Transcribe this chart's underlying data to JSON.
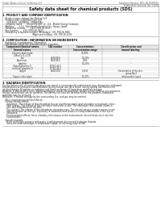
{
  "bg_color": "#ffffff",
  "header_left": "Product Name: Lithium Ion Battery Cell",
  "header_right_line1": "Substance Number: SDS-LIB-20090910",
  "header_right_line2": "Established / Revision: Dec.7,2009",
  "main_title": "Safety data sheet for chemical products (SDS)",
  "section1_title": "1. PRODUCT AND COMPANY IDENTIFICATION",
  "section1_items": [
    "  - Product name: Lithium Ion Battery Cell",
    "  - Product code: Cylindrical-type cell",
    "      (UR18650, UR18650L, UR18650A)",
    "  - Company name:      Sanyo Electric Co., Ltd., Mobile Energy Company",
    "  - Address:      2-3-1  Kannondai, Sumoto-City, Hyogo, Japan",
    "  - Telephone number:      +81-(799)-26-4111",
    "  - Fax number:      +81-(799)-26-4123",
    "  - Emergency telephone number (Weekdays) +81-799-26-3862",
    "                                          (Night and holiday) +81-799-26-4101"
  ],
  "section2_title": "2. COMPOSITION / INFORMATION ON INGREDIENTS",
  "section2_intro": "  - Substance or preparation: Preparation",
  "section2_sub": "  - Information about the chemical nature of product:",
  "table_header_row1": [
    "Component/chemical names",
    "CAS number",
    "Concentration /",
    "Classification and"
  ],
  "table_header_row2": [
    "Several names",
    "",
    "Concentration range",
    "hazard labeling"
  ],
  "table_rows": [
    [
      "Lithium cobalt oxide",
      "-",
      "30-60%",
      "-"
    ],
    [
      "(LiMnxCo(1-x)O2)",
      "",
      "",
      ""
    ],
    [
      "Iron",
      "7439-89-6",
      "10-20%",
      "-"
    ],
    [
      "Aluminum",
      "7429-90-5",
      "2-6%",
      "-"
    ],
    [
      "Graphite",
      "-",
      "10-25%",
      "-"
    ],
    [
      "(flaked graphite-1)",
      "17782-42-5",
      "",
      ""
    ],
    [
      "(artificial graphite-1)",
      "17782-44-2",
      "",
      ""
    ],
    [
      "Copper",
      "7440-50-8",
      "5-15%",
      "Sensitization of the skin"
    ],
    [
      "",
      "",
      "",
      "group No.2"
    ],
    [
      "Organic electrolyte",
      "-",
      "10-20%",
      "Inflammable liquid"
    ]
  ],
  "section3_title": "3. HAZARDS IDENTIFICATION",
  "section3_lines": [
    "For the battery cell, chemical substances are stored in a hermetically sealed metal case, designed to withstand",
    "temperatures or pressures-concentrations during normal use. As a result, during normal use, there is no",
    "physical danger of ignition or explosion and there no danger of hazardous materials leakage.",
    "However, if subjected to a fire, added mechanical shocks, decomposed, written electric without any measures,",
    "the gas release vent can be operated. The battery cell case will be breached or fire-patterns, hazardous",
    "materials may be released.",
    "Moreover, if heated strongly by the surrounding fire, acid gas may be emitted."
  ],
  "section3_bullet1": "  - Most important hazard and effects:",
  "section3_human": "    Human health effects:",
  "section3_detail_lines": [
    "      Inhalation: The release of the electrolyte has an anesthesia action and stimulates a respiratory tract.",
    "      Skin contact: The release of the electrolyte stimulates a skin. The electrolyte skin contact causes a",
    "      sore and stimulation on the skin.",
    "      Eye contact: The release of the electrolyte stimulates eyes. The electrolyte eye contact causes a sore",
    "      and stimulation on the eye. Especially, a substance that causes a strong inflammation of the eye is",
    "      contained.",
    "      Environmental effects: Since a battery cell remains in the environment, do not throw out it into the",
    "      environment."
  ],
  "section3_bullet2": "  - Specific hazards:",
  "section3_specific_lines": [
    "      If the electrolyte contacts with water, it will generate detrimental hydrogen fluoride.",
    "      Since the used electrolyte is inflammable liquid, do not bring close to fire."
  ]
}
